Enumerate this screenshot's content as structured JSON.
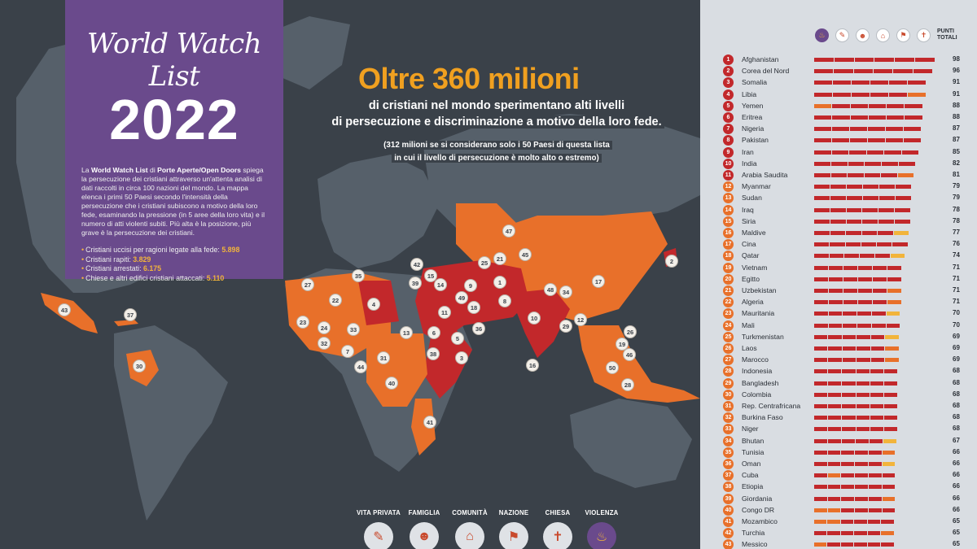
{
  "panel": {
    "brand": "World Watch List",
    "year": "2022",
    "intro_pre": "La ",
    "intro_b1": "World Watch List",
    "intro_mid": " di ",
    "intro_b2": "Porte Aperte/Open Doors",
    "intro_post": " spiega la persecuzione dei cristiani attraverso un'attenta analisi di dati raccolti in circa 100 nazioni del mondo. La mappa elenca i primi 50 Paesi secondo l'intensità della persecuzione che i cristiani subiscono a motivo della loro fede, esaminando la pressione (in 5 aree della loro vita) e il numero di atti violenti subiti. Più alta è la posizione, più grave è la persecuzione dei cristiani.",
    "stats": [
      {
        "label": "Cristiani uccisi per ragioni legate alla fede: ",
        "value": "5.898"
      },
      {
        "label": "Cristiani rapiti: ",
        "value": "3.829"
      },
      {
        "label": "Cristiani arrestati: ",
        "value": "6.175"
      },
      {
        "label": "Chiese e altri edifici cristiani attaccati: ",
        "value": "5.110"
      }
    ]
  },
  "headline": {
    "title": "Oltre 360 milioni",
    "line1": "di cristiani nel mondo sperimentano alti livelli",
    "line2": "di persecuzione e discriminazione a motivo della loro fede.",
    "note1": "(312 milioni se si considerano solo i 50 Paesi di questa lista",
    "note2": "in cui il livello di persecuzione è molto alto o estremo)"
  },
  "legend": [
    {
      "label": "VITA PRIVATA",
      "icon": "speech-bubble-icon"
    },
    {
      "label": "FAMIGLIA",
      "icon": "family-icon"
    },
    {
      "label": "COMUNITÀ",
      "icon": "houses-icon"
    },
    {
      "label": "NAZIONE",
      "icon": "flag-icon"
    },
    {
      "label": "CHIESA",
      "icon": "church-icon"
    },
    {
      "label": "VIOLENZA",
      "icon": "fire-icon"
    }
  ],
  "sidebar": {
    "header_label_1": "PUNTI",
    "header_label_2": "TOTALI",
    "colors": {
      "extreme": "#c2282b",
      "very_high": "#e8702a",
      "medium": "#f2b43b"
    },
    "countries": [
      {
        "rank": "1",
        "name": "Afghanistan",
        "score": "98",
        "level": "extreme",
        "segs": [
          4,
          4,
          4,
          4,
          4,
          4
        ]
      },
      {
        "rank": "2",
        "name": "Corea del Nord",
        "score": "96",
        "level": "extreme",
        "segs": [
          4,
          4,
          4,
          4,
          4,
          3
        ]
      },
      {
        "rank": "3",
        "name": "Somalia",
        "score": "91",
        "level": "extreme",
        "segs": [
          3,
          4,
          4,
          4,
          4,
          3
        ]
      },
      {
        "rank": "4",
        "name": "Libia",
        "score": "91",
        "level": "extreme",
        "segs": [
          4,
          4,
          4,
          4,
          4,
          2
        ]
      },
      {
        "rank": "5",
        "name": "Yemen",
        "score": "88",
        "level": "extreme",
        "segs": [
          2,
          4,
          4,
          4,
          4,
          4
        ]
      },
      {
        "rank": "6",
        "name": "Eritrea",
        "score": "88",
        "level": "extreme",
        "segs": [
          4,
          4,
          4,
          4,
          4,
          3
        ]
      },
      {
        "rank": "7",
        "name": "Nigeria",
        "score": "87",
        "level": "extreme",
        "segs": [
          4,
          4,
          4,
          4,
          4,
          4
        ]
      },
      {
        "rank": "8",
        "name": "Pakistan",
        "score": "87",
        "level": "extreme",
        "segs": [
          4,
          4,
          4,
          4,
          3,
          4
        ]
      },
      {
        "rank": "9",
        "name": "Iran",
        "score": "85",
        "level": "extreme",
        "segs": [
          4,
          4,
          4,
          4,
          4,
          3
        ]
      },
      {
        "rank": "10",
        "name": "India",
        "score": "82",
        "level": "extreme",
        "segs": [
          4,
          4,
          4,
          4,
          3,
          4
        ]
      },
      {
        "rank": "11",
        "name": "Arabia Saudita",
        "score": "81",
        "level": "extreme",
        "segs": [
          4,
          4,
          4,
          4,
          4,
          2
        ]
      },
      {
        "rank": "12",
        "name": "Myanmar",
        "score": "79",
        "level": "very_high",
        "segs": [
          3,
          4,
          3,
          4,
          4,
          4
        ]
      },
      {
        "rank": "13",
        "name": "Sudan",
        "score": "79",
        "level": "very_high",
        "segs": [
          3,
          4,
          4,
          4,
          4,
          3
        ]
      },
      {
        "rank": "14",
        "name": "Iraq",
        "score": "78",
        "level": "very_high",
        "segs": [
          4,
          4,
          4,
          4,
          3,
          3
        ]
      },
      {
        "rank": "15",
        "name": "Siria",
        "score": "78",
        "level": "very_high",
        "segs": [
          3,
          4,
          4,
          3,
          4,
          3
        ]
      },
      {
        "rank": "16",
        "name": "Maldive",
        "score": "77",
        "level": "very_high",
        "segs": [
          4,
          4,
          4,
          4,
          4,
          1
        ]
      },
      {
        "rank": "17",
        "name": "Cina",
        "score": "76",
        "level": "very_high",
        "segs": [
          3,
          3,
          4,
          4,
          4,
          4
        ]
      },
      {
        "rank": "18",
        "name": "Qatar",
        "score": "74",
        "level": "very_high",
        "segs": [
          4,
          4,
          4,
          4,
          4,
          1
        ]
      },
      {
        "rank": "19",
        "name": "Vietnam",
        "score": "71",
        "level": "very_high",
        "segs": [
          3,
          3,
          4,
          4,
          4,
          3
        ]
      },
      {
        "rank": "20",
        "name": "Egitto",
        "score": "71",
        "level": "very_high",
        "segs": [
          3,
          4,
          4,
          3,
          3,
          4
        ]
      },
      {
        "rank": "21",
        "name": "Uzbekistan",
        "score": "71",
        "level": "very_high",
        "segs": [
          4,
          3,
          4,
          4,
          4,
          2
        ]
      },
      {
        "rank": "22",
        "name": "Algeria",
        "score": "71",
        "level": "very_high",
        "segs": [
          4,
          4,
          4,
          3,
          4,
          2
        ]
      },
      {
        "rank": "23",
        "name": "Mauritania",
        "score": "70",
        "level": "very_high",
        "segs": [
          4,
          4,
          4,
          4,
          4,
          1
        ]
      },
      {
        "rank": "24",
        "name": "Mali",
        "score": "70",
        "level": "very_high",
        "segs": [
          3,
          3,
          4,
          3,
          3,
          4
        ]
      },
      {
        "rank": "25",
        "name": "Turkmenistan",
        "score": "69",
        "level": "very_high",
        "segs": [
          4,
          3,
          4,
          4,
          4,
          1
        ]
      },
      {
        "rank": "26",
        "name": "Laos",
        "score": "69",
        "level": "very_high",
        "segs": [
          3,
          3,
          4,
          4,
          4,
          2
        ]
      },
      {
        "rank": "27",
        "name": "Marocco",
        "score": "69",
        "level": "very_high",
        "segs": [
          4,
          4,
          3,
          3,
          4,
          2
        ]
      },
      {
        "rank": "28",
        "name": "Indonesia",
        "score": "68",
        "level": "very_high",
        "segs": [
          3,
          3,
          3,
          3,
          3,
          4
        ]
      },
      {
        "rank": "29",
        "name": "Bangladesh",
        "score": "68",
        "level": "very_high",
        "segs": [
          3,
          3,
          3,
          3,
          3,
          4
        ]
      },
      {
        "rank": "30",
        "name": "Colombia",
        "score": "68",
        "level": "very_high",
        "segs": [
          3,
          3,
          3,
          3,
          3,
          4
        ]
      },
      {
        "rank": "31",
        "name": "Rep. Centrafricana",
        "score": "68",
        "level": "very_high",
        "segs": [
          3,
          3,
          3,
          3,
          3,
          4
        ]
      },
      {
        "rank": "32",
        "name": "Burkina Faso",
        "score": "68",
        "level": "very_high",
        "segs": [
          3,
          3,
          3,
          3,
          3,
          4
        ]
      },
      {
        "rank": "33",
        "name": "Niger",
        "score": "68",
        "level": "very_high",
        "segs": [
          3,
          3,
          3,
          3,
          3,
          4
        ]
      },
      {
        "rank": "34",
        "name": "Bhutan",
        "score": "67",
        "level": "very_high",
        "segs": [
          3,
          3,
          4,
          4,
          4,
          1
        ]
      },
      {
        "rank": "35",
        "name": "Tunisia",
        "score": "66",
        "level": "very_high",
        "segs": [
          3,
          3,
          3,
          4,
          3,
          2
        ]
      },
      {
        "rank": "36",
        "name": "Oman",
        "score": "66",
        "level": "very_high",
        "segs": [
          4,
          4,
          3,
          3,
          4,
          1
        ]
      },
      {
        "rank": "37",
        "name": "Cuba",
        "score": "66",
        "level": "very_high",
        "segs": [
          3,
          2,
          3,
          4,
          4,
          3
        ]
      },
      {
        "rank": "38",
        "name": "Etiopia",
        "score": "66",
        "level": "very_high",
        "segs": [
          3,
          3,
          3,
          3,
          3,
          4
        ]
      },
      {
        "rank": "39",
        "name": "Giordania",
        "score": "66",
        "level": "very_high",
        "segs": [
          4,
          3,
          4,
          3,
          3,
          2
        ]
      },
      {
        "rank": "40",
        "name": "Congo DR",
        "score": "66",
        "level": "very_high",
        "segs": [
          2,
          2,
          3,
          3,
          3,
          4
        ]
      },
      {
        "rank": "41",
        "name": "Mozambico",
        "score": "65",
        "level": "very_high",
        "segs": [
          2,
          2,
          3,
          3,
          3,
          4
        ]
      },
      {
        "rank": "42",
        "name": "Turchia",
        "score": "65",
        "level": "very_high",
        "segs": [
          3,
          3,
          3,
          4,
          3,
          2
        ]
      },
      {
        "rank": "43",
        "name": "Messico",
        "score": "65",
        "level": "very_high",
        "segs": [
          2,
          3,
          3,
          3,
          3,
          4
        ]
      }
    ]
  },
  "map_markers": [
    "1",
    "2",
    "3",
    "4",
    "5",
    "6",
    "7",
    "8",
    "9",
    "10",
    "11",
    "12",
    "13",
    "14",
    "15",
    "16",
    "17",
    "18",
    "19",
    "21",
    "22",
    "23",
    "24",
    "25",
    "26",
    "27",
    "28",
    "29",
    "30",
    "31",
    "32",
    "33",
    "34",
    "35",
    "36",
    "37",
    "38",
    "39",
    "40",
    "41",
    "42",
    "43",
    "44",
    "45",
    "46",
    "47",
    "48",
    "49",
    "50"
  ],
  "map_colors": {
    "ocean": "#3a4149",
    "land": "#56606a",
    "extreme": "#c2282b",
    "very_high": "#e8702a"
  }
}
